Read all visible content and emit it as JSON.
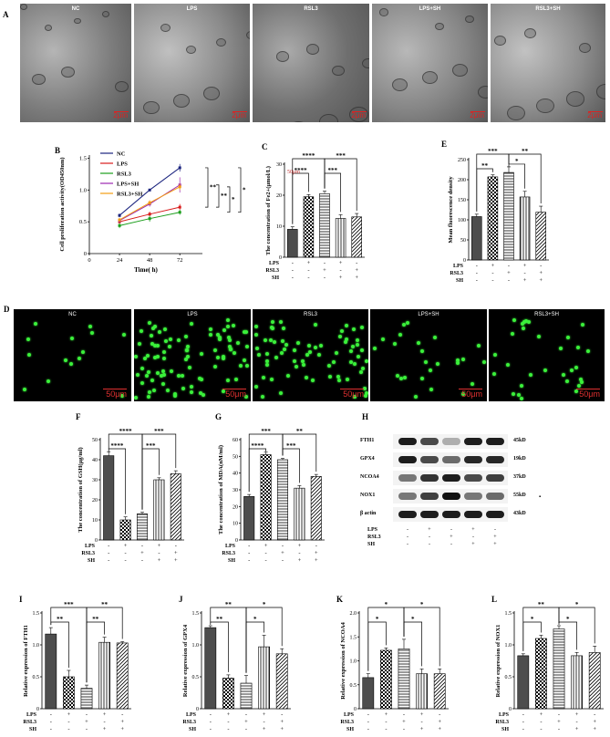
{
  "panels": {
    "A": "A",
    "B": "B",
    "C": "C",
    "D": "D",
    "E": "E",
    "F": "F",
    "G": "G",
    "H": "H",
    "I": "I",
    "J": "J",
    "K": "K",
    "L": "L"
  },
  "em": {
    "labels": [
      "NC",
      "LPS",
      "RSL3",
      "LPS+SH",
      "RSL3+SH"
    ],
    "scale": "2μm"
  },
  "fluor": {
    "labels": [
      "NC",
      "LPS",
      "RSL3",
      "LPS+SH",
      "RSL3+SH"
    ],
    "scale": "50μm",
    "density": [
      14,
      90,
      70,
      25,
      30
    ]
  },
  "colors": {
    "NC": "#1a237e",
    "LPS": "#d81b1b",
    "RSL3": "#1b9e1b",
    "LPS+SH": "#9c27b0",
    "RSL3+SH": "#f39c12"
  },
  "chart_data": [
    {
      "id": "B",
      "type": "line",
      "ylabel": "Cell proliferation activity(OD450nm)",
      "xlabel": "Time( h)",
      "x": [
        24,
        48,
        72
      ],
      "xticks": [
        0,
        24,
        48,
        72
      ],
      "yticks": [
        0,
        0.5,
        1.0,
        1.5
      ],
      "ylim": [
        0,
        1.55
      ],
      "xlim": [
        0,
        90
      ],
      "series": [
        {
          "name": "NC",
          "values": [
            0.6,
            1.0,
            1.35
          ],
          "err": [
            0.03,
            0.02,
            0.06
          ]
        },
        {
          "name": "LPS",
          "values": [
            0.5,
            0.62,
            0.73
          ],
          "err": [
            0.03,
            0.04,
            0.05
          ]
        },
        {
          "name": "RSL3",
          "values": [
            0.44,
            0.55,
            0.65
          ],
          "err": [
            0.04,
            0.05,
            0.04
          ]
        },
        {
          "name": "LPS+SH",
          "values": [
            0.52,
            0.78,
            1.08
          ],
          "err": [
            0.03,
            0.04,
            0.12
          ]
        },
        {
          "name": "RSL3+SH",
          "values": [
            0.53,
            0.8,
            1.05
          ],
          "err": [
            0.03,
            0.04,
            0.05
          ]
        }
      ],
      "sig": [
        "**",
        "**",
        "*",
        "*"
      ]
    },
    {
      "id": "C",
      "type": "bar",
      "ylabel": "The concentration of Fe2+(μmol/L)",
      "yticks": [
        0,
        10,
        20,
        30
      ],
      "ylim": [
        0,
        30
      ],
      "values": [
        9,
        19.5,
        20.5,
        12.5,
        13
      ],
      "err": [
        0.8,
        0.7,
        0.8,
        1.2,
        1.1
      ],
      "annotation": "50μm",
      "sig": [
        {
          "from": 0,
          "to": 2,
          "text": "****",
          "level": 2
        },
        {
          "from": 0,
          "to": 1,
          "text": "****",
          "level": 1
        },
        {
          "from": 2,
          "to": 4,
          "text": "***",
          "level": 2
        },
        {
          "from": 2,
          "to": 3,
          "text": "***",
          "level": 1
        }
      ]
    },
    {
      "id": "E",
      "type": "bar",
      "ylabel": "Mean fluorescence density",
      "yticks": [
        0,
        50,
        100,
        150,
        200,
        250
      ],
      "ylim": [
        0,
        250
      ],
      "values": [
        108,
        207,
        218,
        157,
        119
      ],
      "err": [
        6,
        5,
        14,
        14,
        15
      ],
      "sig": [
        {
          "from": 0,
          "to": 2,
          "text": "***",
          "level": 2
        },
        {
          "from": 0,
          "to": 1,
          "text": "**",
          "level": 1
        },
        {
          "from": 2,
          "to": 4,
          "text": "**",
          "level": 2
        },
        {
          "from": 2,
          "to": 3,
          "text": "*",
          "level": 1
        }
      ]
    },
    {
      "id": "F",
      "type": "bar",
      "ylabel": "The concentration of GSH(μg/ml)",
      "yticks": [
        0,
        10,
        20,
        30,
        40,
        50
      ],
      "ylim": [
        0,
        50
      ],
      "values": [
        42,
        10,
        13,
        30,
        33
      ],
      "err": [
        2,
        1.5,
        0.8,
        1,
        1.5
      ],
      "sig": [
        {
          "from": 0,
          "to": 2,
          "text": "****",
          "level": 2
        },
        {
          "from": 0,
          "to": 1,
          "text": "****",
          "level": 1
        },
        {
          "from": 2,
          "to": 4,
          "text": "***",
          "level": 2
        },
        {
          "from": 2,
          "to": 3,
          "text": "***",
          "level": 1
        }
      ]
    },
    {
      "id": "G",
      "type": "bar",
      "ylabel": "The concentration of MDA(nM/ml)",
      "yticks": [
        0,
        10,
        20,
        30,
        40,
        50,
        60
      ],
      "ylim": [
        0,
        60
      ],
      "values": [
        26,
        51,
        48,
        31,
        38
      ],
      "err": [
        1.2,
        1.5,
        0.8,
        1.5,
        1.2
      ],
      "sig": [
        {
          "from": 0,
          "to": 2,
          "text": "***",
          "level": 2
        },
        {
          "from": 0,
          "to": 1,
          "text": "****",
          "level": 1
        },
        {
          "from": 2,
          "to": 4,
          "text": "**",
          "level": 2
        },
        {
          "from": 2,
          "to": 3,
          "text": "***",
          "level": 1
        }
      ]
    },
    {
      "id": "I",
      "type": "bar",
      "ylabel": "Relative expression of FTH1",
      "yticks": [
        0,
        0.5,
        1.0,
        1.5
      ],
      "ylim": [
        0,
        1.5
      ],
      "values": [
        1.17,
        0.5,
        0.32,
        1.04,
        1.03
      ],
      "err": [
        0.1,
        0.1,
        0.05,
        0.08,
        0.02
      ],
      "sig": [
        {
          "from": 0,
          "to": 2,
          "text": "***",
          "level": 2
        },
        {
          "from": 0,
          "to": 1,
          "text": "**",
          "level": 1
        },
        {
          "from": 2,
          "to": 4,
          "text": "**",
          "level": 2
        },
        {
          "from": 2,
          "to": 3,
          "text": "**",
          "level": 1
        }
      ]
    },
    {
      "id": "J",
      "type": "bar",
      "ylabel": "Relative expression of GPX4",
      "yticks": [
        0,
        0.5,
        1.0,
        1.5
      ],
      "ylim": [
        0,
        1.5
      ],
      "values": [
        1.27,
        0.48,
        0.4,
        0.97,
        0.86
      ],
      "err": [
        0.03,
        0.05,
        0.12,
        0.18,
        0.08
      ],
      "sig": [
        {
          "from": 0,
          "to": 2,
          "text": "**",
          "level": 2
        },
        {
          "from": 0,
          "to": 1,
          "text": "**",
          "level": 1
        },
        {
          "from": 2,
          "to": 4,
          "text": "*",
          "level": 2
        },
        {
          "from": 2,
          "to": 3,
          "text": "*",
          "level": 1
        }
      ]
    },
    {
      "id": "K",
      "type": "bar",
      "ylabel": "Relative expression of NCOA4",
      "yticks": [
        0,
        0.5,
        1.0,
        1.5,
        2.0
      ],
      "ylim": [
        0,
        2.0
      ],
      "values": [
        0.65,
        1.22,
        1.25,
        0.73,
        0.73
      ],
      "err": [
        0.08,
        0.05,
        0.2,
        0.1,
        0.1
      ],
      "sig": [
        {
          "from": 0,
          "to": 2,
          "text": "*",
          "level": 2
        },
        {
          "from": 0,
          "to": 1,
          "text": "*",
          "level": 1
        },
        {
          "from": 2,
          "to": 4,
          "text": "*",
          "level": 2
        },
        {
          "from": 2,
          "to": 3,
          "text": "*",
          "level": 1
        }
      ]
    },
    {
      "id": "L",
      "type": "bar",
      "ylabel": "Relative expression of NOX1",
      "yticks": [
        0,
        0.5,
        1.0,
        1.5
      ],
      "ylim": [
        0,
        1.5
      ],
      "values": [
        0.83,
        1.1,
        1.25,
        0.83,
        0.88
      ],
      "err": [
        0.03,
        0.05,
        0.05,
        0.05,
        0.1
      ],
      "sig": [
        {
          "from": 0,
          "to": 2,
          "text": "**",
          "level": 2
        },
        {
          "from": 0,
          "to": 1,
          "text": "*",
          "level": 1
        },
        {
          "from": 2,
          "to": 4,
          "text": "*",
          "level": 2
        },
        {
          "from": 2,
          "to": 3,
          "text": "*",
          "level": 1
        }
      ]
    }
  ],
  "treatment": {
    "rows": [
      "LPS",
      "RSL3",
      "SH"
    ],
    "matrix": [
      [
        "-",
        "+",
        "-",
        "+",
        "-"
      ],
      [
        "-",
        "-",
        "+",
        "-",
        "+"
      ],
      [
        "-",
        "-",
        "-",
        "+",
        "+"
      ]
    ]
  },
  "western": {
    "proteins": [
      "FTH1",
      "GPX4",
      "NCOA4",
      "NOX1",
      "β actin"
    ],
    "kd": [
      "45kD",
      "19kD",
      "37kD",
      "55kD",
      "43kD"
    ],
    "intensity": [
      [
        0.95,
        0.75,
        0.3,
        0.95,
        0.95
      ],
      [
        0.95,
        0.75,
        0.6,
        0.9,
        0.9
      ],
      [
        0.55,
        0.85,
        0.95,
        0.75,
        0.8
      ],
      [
        0.55,
        0.8,
        1.0,
        0.55,
        0.6
      ],
      [
        0.95,
        0.95,
        0.95,
        0.95,
        0.95
      ]
    ],
    "dot": "▪"
  }
}
